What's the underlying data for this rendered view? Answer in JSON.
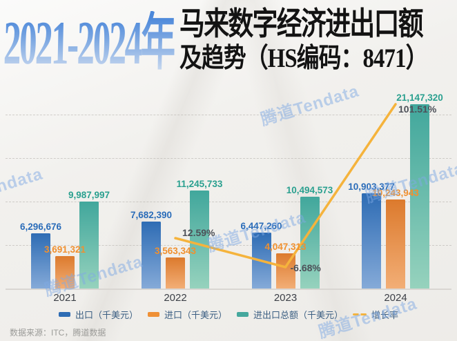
{
  "title": {
    "years": "2021-2024年",
    "line1": "马来数字经济进出口额",
    "line2": "及趋势（HS编码：8471）"
  },
  "chart_data": {
    "type": "bar",
    "categories": [
      "2021",
      "2022",
      "2023",
      "2024"
    ],
    "series": [
      {
        "name": "出口（千美元）",
        "values": [
          6296676,
          7682390,
          6447260,
          10903377
        ],
        "labels": [
          "6,296,676",
          "7,682,390",
          "6,447,260",
          "10,903,377"
        ],
        "color_top": "#2e6cb4",
        "color_bottom": "#85aad8",
        "label_color": "#2a6cb9"
      },
      {
        "name": "进口（千美元）",
        "values": [
          3691321,
          3563343,
          4047313,
          10243943
        ],
        "labels": [
          "3,691,321",
          "3,563,343",
          "4,047,313",
          "10,243,943"
        ],
        "color_top": "#dc7a2d",
        "color_bottom": "#f2ae76",
        "label_color": "#f0902f"
      },
      {
        "name": "进出口总额（千美元）",
        "values": [
          9987997,
          11245733,
          10494573,
          21147320
        ],
        "labels": [
          "9,987,997",
          "11,245,733",
          "10,494,573",
          "21,147,320"
        ],
        "color_top": "#41a79c",
        "color_bottom": "#96d2bd",
        "label_color": "#2aa08f"
      }
    ],
    "line_series": {
      "name": "增长率",
      "x": [
        "2022",
        "2023",
        "2024"
      ],
      "values_pct": [
        12.59,
        -6.68,
        101.51
      ],
      "labels": [
        "12.59%",
        "-6.68%",
        "101.51%"
      ],
      "color": "#f5b33c"
    },
    "ylim": [
      0,
      22000000
    ],
    "grid": "horizontal-dashed",
    "legend_position": "bottom"
  },
  "legend": [
    {
      "label": "出口（千美元）",
      "marker": "bar",
      "color": "#2e6cb4"
    },
    {
      "label": "进口（千美元）",
      "marker": "bar",
      "color": "#ef9035"
    },
    {
      "label": "进出口总额（千美元）",
      "marker": "bar",
      "color": "#45a89d"
    },
    {
      "label": "增长率",
      "marker": "line",
      "color": "#f5b33c"
    }
  ],
  "source": "数据来源：ITC，腾道数据",
  "watermark": {
    "text": "腾道Tendata"
  }
}
